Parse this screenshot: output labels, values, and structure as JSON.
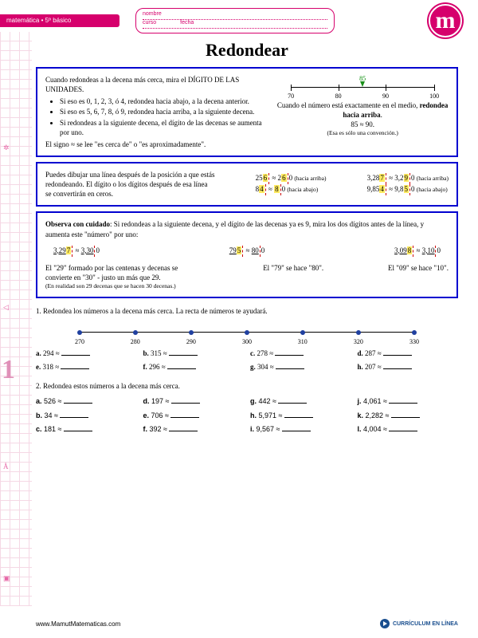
{
  "header": {
    "subject": "matemática • 5º básico",
    "fields": {
      "nombre": "nombre",
      "curso": "curso",
      "fecha": "fecha"
    },
    "logo": "m"
  },
  "title": "Redondear",
  "box1": {
    "intro": "Cuando redondeas a la decena más cerca, mira el DÍGITO DE LAS UNIDADES.",
    "bullets": [
      "Si eso es 0, 1, 2, 3, ó 4, redondea hacia abajo, a la decena anterior.",
      "Si eso es 5, 6, 7, 8, ó 9, redondea hacia arriba, a la siguiente decena.",
      "Si redondeas a la siguiente decena, el dígito de las decenas se aumenta por uno."
    ],
    "approx_note": "El signo ≈ se lee \"es cerca de\" o \"es aproximadamente\".",
    "numline": {
      "marker": "85",
      "ticks": [
        "70",
        "80",
        "90",
        "100"
      ]
    },
    "mid_text1": "Cuando el número está exactamente en el medio,",
    "mid_bold": "redondea hacia arriba",
    "mid_eq": "85 ≈ 90.",
    "mid_note": "(Esa es sólo una convención.)"
  },
  "box2": {
    "text1": "Puedes dibujar una línea después de la posición a que estás redondeando. El dígito o los dígitos después de esa línea se convertirán en ceros.",
    "ex": [
      {
        "a": "25",
        "hl": "6",
        "b": "",
        "r": "260",
        "hint": "(hacia arriba)"
      },
      {
        "a": "3,28",
        "hl": "7",
        "b": "",
        "r": "3,290",
        "hint": "(hacia arriba)"
      },
      {
        "a": "8",
        "hl": "4",
        "b": "",
        "r": "80",
        "hint": "(hacia abajo)"
      },
      {
        "a": "9,85",
        "hl": "4",
        "b": "",
        "r": "9,850",
        "hint": "(hacia abajo)"
      }
    ]
  },
  "box3": {
    "lead_bold": "Observa con cuidado",
    "lead": ": Si redondeas a la siguiente decena, y el dígito de las decenas ya es 9, mira los dos dígitos antes de la línea, y aumenta este \"número\" por uno:",
    "row": [
      {
        "a": "3,29",
        "hl": "7",
        "r": "3,300"
      },
      {
        "a": "79",
        "hl": "5",
        "r": "800"
      },
      {
        "a": "3,09",
        "hl": "8",
        "r": "3,100"
      }
    ],
    "notes": [
      "El \"29\" formado por las centenas y decenas se convierte en \"30\" - justo un más que 29.",
      "El \"79\" se hace \"80\".",
      "El \"09\" se hace \"10\"."
    ],
    "subnote": "(En realidad son 29 decenas que se hacen 30 decenas.)"
  },
  "q1": {
    "prompt": "1. Redondea los números a la decena más cerca. La recta de números te ayudará.",
    "ticks": [
      "270",
      "280",
      "290",
      "300",
      "310",
      "320",
      "330"
    ],
    "items": [
      {
        "l": "a.",
        "n": "294"
      },
      {
        "l": "b.",
        "n": "315"
      },
      {
        "l": "c.",
        "n": "278"
      },
      {
        "l": "d.",
        "n": "287"
      },
      {
        "l": "e.",
        "n": "318"
      },
      {
        "l": "f.",
        "n": "296"
      },
      {
        "l": "g.",
        "n": "304"
      },
      {
        "l": "h.",
        "n": "207"
      }
    ]
  },
  "q2": {
    "prompt": "2. Redondea estos números a la decena más cerca.",
    "items": [
      {
        "l": "a.",
        "n": "526"
      },
      {
        "l": "d.",
        "n": "197"
      },
      {
        "l": "g.",
        "n": "442"
      },
      {
        "l": "j.",
        "n": "4,061"
      },
      {
        "l": "b.",
        "n": "34"
      },
      {
        "l": "e.",
        "n": "706"
      },
      {
        "l": "h.",
        "n": "5,971"
      },
      {
        "l": "k.",
        "n": "2,282"
      },
      {
        "l": "c.",
        "n": "181"
      },
      {
        "l": "f.",
        "n": "392"
      },
      {
        "l": "i.",
        "n": "9,567"
      },
      {
        "l": "l.",
        "n": "4,004"
      }
    ]
  },
  "footer": {
    "site": "www.MamutMatematicas.com",
    "curric": "CURRÍCULUM EN LÍNEA"
  }
}
